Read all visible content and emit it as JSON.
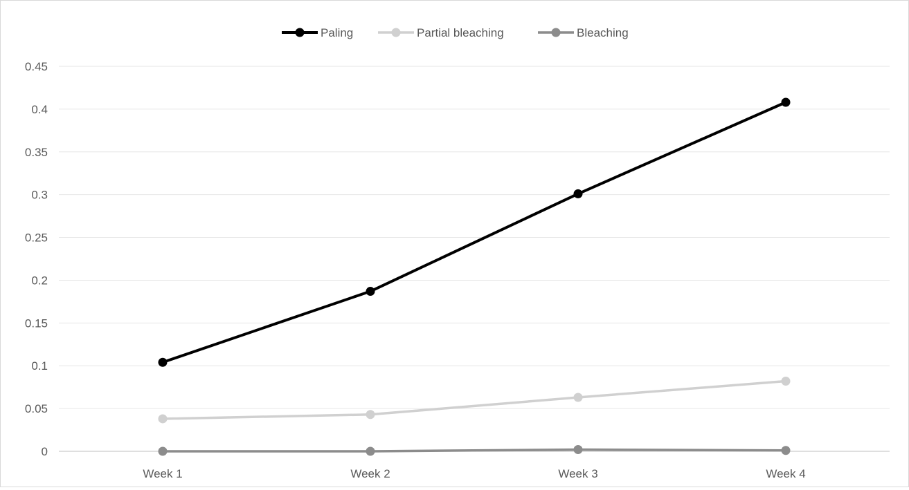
{
  "chart_data": {
    "type": "line",
    "categories": [
      "Week 1",
      "Week 2",
      "Week 3",
      "Week 4"
    ],
    "series": [
      {
        "name": "Paling",
        "values": [
          0.104,
          0.187,
          0.301,
          0.408
        ],
        "color": "#000000",
        "marker": "circle"
      },
      {
        "name": "Partial bleaching",
        "values": [
          0.038,
          0.043,
          0.063,
          0.082
        ],
        "color": "#d0d0d0",
        "marker": "circle"
      },
      {
        "name": "Bleaching",
        "values": [
          0.0,
          0.0,
          0.002,
          0.001
        ],
        "color": "#8c8c8c",
        "marker": "circle"
      }
    ],
    "ylim": [
      0,
      0.45
    ],
    "yticks": [
      "0",
      "0.05",
      "0.1",
      "0.15",
      "0.2",
      "0.25",
      "0.3",
      "0.35",
      "0.4",
      "0.45"
    ],
    "ytick_values": [
      0,
      0.05,
      0.1,
      0.15,
      0.2,
      0.25,
      0.3,
      0.35,
      0.4,
      0.45
    ],
    "grid": true,
    "legend_position": "top-center"
  }
}
